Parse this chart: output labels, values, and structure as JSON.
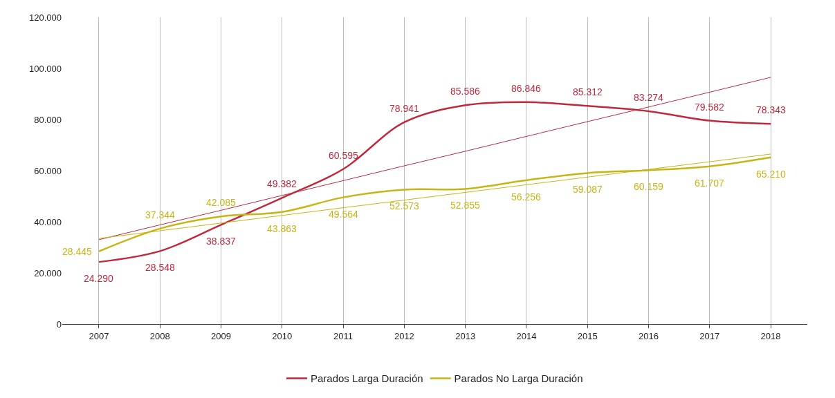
{
  "chart_data": {
    "type": "line",
    "categories": [
      "2007",
      "2008",
      "2009",
      "2010",
      "2011",
      "2012",
      "2013",
      "2014",
      "2015",
      "2016",
      "2017",
      "2018"
    ],
    "series": [
      {
        "name": "Parados Larga Duración",
        "color": "#c0283c",
        "values": [
          24290,
          28548,
          38837,
          49382,
          60595,
          78941,
          85586,
          86846,
          85312,
          83274,
          79582,
          78343
        ],
        "value_labels": [
          "24.290",
          "28.548",
          "38.837",
          "49.382",
          "60.595",
          "78.941",
          "85.586",
          "86.846",
          "85.312",
          "83.274",
          "79.582",
          "78.343"
        ]
      },
      {
        "name": "Parados No Larga Duración",
        "color": "#c8b414",
        "values": [
          28445,
          37344,
          42085,
          43863,
          49564,
          52573,
          52855,
          56256,
          59087,
          60159,
          61707,
          65210
        ],
        "value_labels": [
          "28.445",
          "37.344",
          "42.085",
          "43.863",
          "49.564",
          "52.573",
          "52.855",
          "56.256",
          "59.087",
          "60.159",
          "61.707",
          "65.210"
        ]
      },
      {
        "color": "#c0283c",
        "values": [
          33000,
          38800,
          44500,
          50300,
          56100,
          61900,
          67600,
          73400,
          79200,
          84900,
          90700,
          96500
        ]
      },
      {
        "color": "#c8b414",
        "values": [
          33500,
          36500,
          39500,
          42500,
          45500,
          48500,
          51500,
          54500,
          57500,
          60500,
          63500,
          66500
        ]
      }
    ],
    "ylim": [
      0,
      120000
    ],
    "yticks": [
      {
        "value": 0,
        "label": "0"
      },
      {
        "value": 20000,
        "label": "20.000"
      },
      {
        "value": 40000,
        "label": "40.000"
      },
      {
        "value": 60000,
        "label": "60.000"
      },
      {
        "value": 80000,
        "label": "80.000"
      },
      {
        "value": 100000,
        "label": "100.000"
      },
      {
        "value": 120000,
        "label": "120.000"
      }
    ],
    "grid": "x",
    "legend": "bottom",
    "marker": "none",
    "line_style": "solid"
  }
}
